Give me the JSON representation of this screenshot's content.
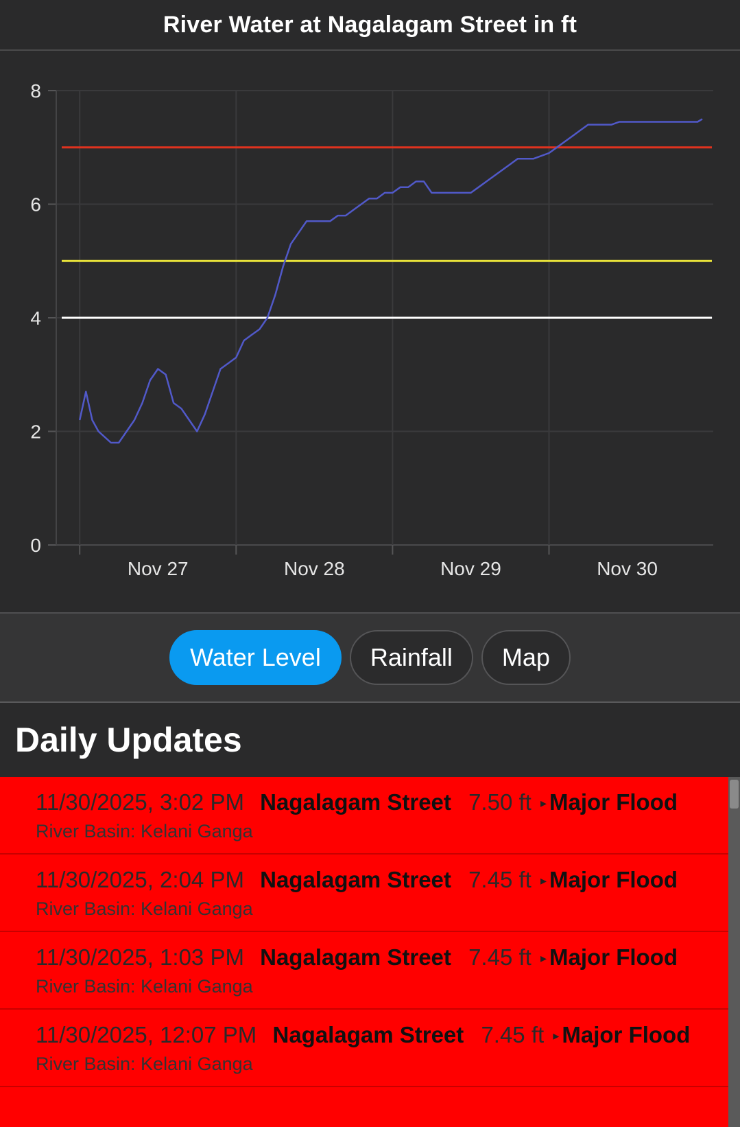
{
  "header": {
    "title": "River Water at Nagalagam Street in ft"
  },
  "chart_data": {
    "type": "line",
    "title": "River Water at Nagalagam Street in ft",
    "xlabel": "",
    "ylabel": "",
    "ylim": [
      0,
      8
    ],
    "yticks": [
      "0",
      "2",
      "4",
      "6",
      "8"
    ],
    "xticks": [
      "Nov 27",
      "Nov 28",
      "Nov 29",
      "Nov 30"
    ],
    "grid": true,
    "series": [
      {
        "color": "#5159c9",
        "x": [
          0.0,
          0.04,
          0.08,
          0.12,
          0.2,
          0.25,
          0.3,
          0.35,
          0.4,
          0.45,
          0.5,
          0.55,
          0.6,
          0.65,
          0.7,
          0.75,
          0.8,
          0.85,
          0.9,
          0.95,
          1.0,
          1.05,
          1.1,
          1.15,
          1.2,
          1.25,
          1.3,
          1.35,
          1.4,
          1.45,
          1.5,
          1.55,
          1.6,
          1.65,
          1.7,
          1.75,
          1.8,
          1.85,
          1.9,
          1.95,
          2.0,
          2.05,
          2.1,
          2.15,
          2.2,
          2.25,
          2.3,
          2.35,
          2.4,
          2.45,
          2.5,
          2.55,
          2.6,
          2.65,
          2.7,
          2.75,
          2.8,
          2.9,
          3.0,
          3.05,
          3.1,
          3.15,
          3.2,
          3.25,
          3.3,
          3.35,
          3.4,
          3.45,
          3.5,
          3.55,
          3.6,
          3.65,
          3.7,
          3.75,
          3.8,
          3.85,
          3.9,
          3.95,
          3.98
        ],
        "y": [
          2.2,
          2.7,
          2.2,
          2.0,
          1.8,
          1.8,
          2.0,
          2.2,
          2.5,
          2.9,
          3.1,
          3.0,
          2.5,
          2.4,
          2.2,
          2.0,
          2.3,
          2.7,
          3.1,
          3.2,
          3.3,
          3.6,
          3.7,
          3.8,
          4.0,
          4.4,
          4.9,
          5.3,
          5.5,
          5.7,
          5.7,
          5.7,
          5.7,
          5.8,
          5.8,
          5.9,
          6.0,
          6.1,
          6.1,
          6.2,
          6.2,
          6.3,
          6.3,
          6.4,
          6.4,
          6.2,
          6.2,
          6.2,
          6.2,
          6.2,
          6.2,
          6.3,
          6.4,
          6.5,
          6.6,
          6.7,
          6.8,
          6.8,
          6.9,
          7.0,
          7.1,
          7.2,
          7.3,
          7.4,
          7.4,
          7.4,
          7.4,
          7.45,
          7.45,
          7.45,
          7.45,
          7.45,
          7.45,
          7.45,
          7.45,
          7.45,
          7.45,
          7.45,
          7.5
        ]
      }
    ],
    "thresholds": [
      {
        "value": 7,
        "color": "#e0321e"
      },
      {
        "value": 5,
        "color": "#e8e23a"
      },
      {
        "value": 4,
        "color": "#ffffff"
      }
    ]
  },
  "tabs": [
    {
      "label": "Water Level",
      "active": true
    },
    {
      "label": "Rainfall",
      "active": false
    },
    {
      "label": "Map",
      "active": false
    }
  ],
  "updates": {
    "title": "Daily Updates",
    "items": [
      {
        "date": "11/30/2025, 3:02 PM",
        "station": "Nagalagam Street",
        "level": "7.50 ft",
        "arrow": "▸",
        "status": "Major Flood",
        "basin": "River Basin: Kelani Ganga"
      },
      {
        "date": "11/30/2025, 2:04 PM",
        "station": "Nagalagam Street",
        "level": "7.45 ft",
        "arrow": "▸",
        "status": "Major Flood",
        "basin": "River Basin: Kelani Ganga"
      },
      {
        "date": "11/30/2025, 1:03 PM",
        "station": "Nagalagam Street",
        "level": "7.45 ft",
        "arrow": "▸",
        "status": "Major Flood",
        "basin": "River Basin: Kelani Ganga"
      },
      {
        "date": "11/30/2025, 12:07 PM",
        "station": "Nagalagam Street",
        "level": "7.45 ft",
        "arrow": "▸",
        "status": "Major Flood",
        "basin": "River Basin: Kelani Ganga"
      }
    ]
  },
  "colors": {
    "status": "#ff0000",
    "accent": "#0a9af0"
  }
}
